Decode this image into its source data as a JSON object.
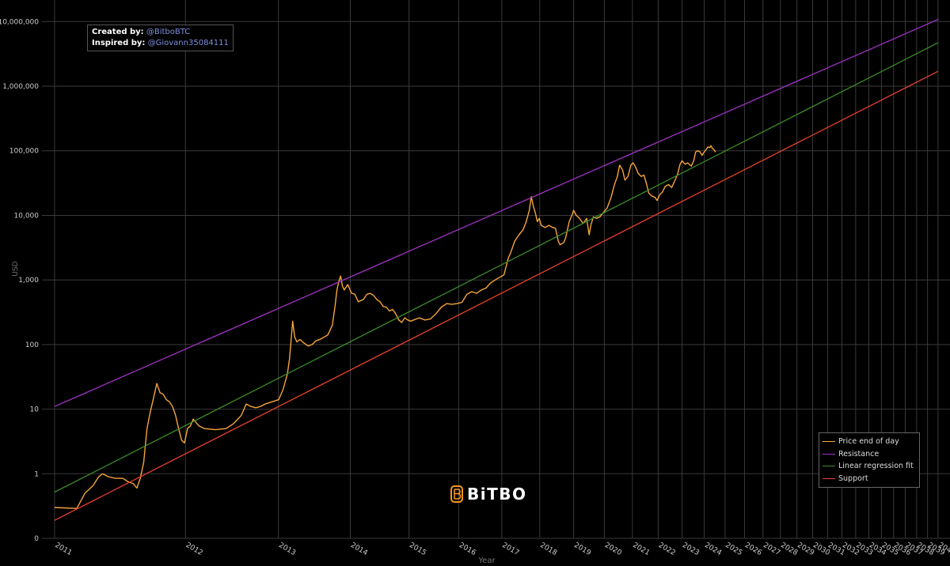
{
  "credits": {
    "created_label": "Created by:",
    "created_value": "@BitboBTC",
    "inspired_label": "Inspired by:",
    "inspired_value": "@Giovann35084111"
  },
  "logo": {
    "text": "BiTBO",
    "color": "#f7931a"
  },
  "chart_data": {
    "type": "line",
    "title": "",
    "xlabel": "Year",
    "ylabel": "USD",
    "y_scale": "log",
    "y_ticks": [
      0.1,
      1,
      10,
      100,
      1000,
      10000,
      100000,
      1000000,
      10000000
    ],
    "y_tick_labels": [
      "0",
      "1",
      "10",
      "100",
      "1,000",
      "10,000",
      "100,000",
      "1,000,000",
      "10,000,000"
    ],
    "x_axis_note": "x is days since Bitcoin genesis block; ticks placed at log scale of days",
    "x_ticks": [
      {
        "label": "2011",
        "x": 728
      },
      {
        "label": "2012",
        "x": 1093
      },
      {
        "label": "2013",
        "x": 1459
      },
      {
        "label": "2014",
        "x": 1824
      },
      {
        "label": "2015",
        "x": 2189
      },
      {
        "label": "2016",
        "x": 2554
      },
      {
        "label": "2017",
        "x": 2920
      },
      {
        "label": "2018",
        "x": 3285
      },
      {
        "label": "2019",
        "x": 3650
      },
      {
        "label": "2020",
        "x": 4015
      },
      {
        "label": "2021",
        "x": 4381
      },
      {
        "label": "2022",
        "x": 4746
      },
      {
        "label": "2023",
        "x": 5111
      },
      {
        "label": "2024",
        "x": 5476
      },
      {
        "label": "2025",
        "x": 5842
      },
      {
        "label": "2026",
        "x": 6207
      },
      {
        "label": "2027",
        "x": 6572
      },
      {
        "label": "2028",
        "x": 6937
      },
      {
        "label": "2029",
        "x": 7303
      },
      {
        "label": "2030",
        "x": 7668
      },
      {
        "label": "2031",
        "x": 8033
      },
      {
        "label": "2032",
        "x": 8398
      },
      {
        "label": "2033",
        "x": 8764
      },
      {
        "label": "2034",
        "x": 9129
      },
      {
        "label": "2035",
        "x": 9494
      },
      {
        "label": "2036",
        "x": 9859
      },
      {
        "label": "2037",
        "x": 10225
      },
      {
        "label": "2038",
        "x": 10590
      },
      {
        "label": "2039",
        "x": 10955
      },
      {
        "label": "2040",
        "x": 11320
      }
    ],
    "x_range": [
      700,
      11350
    ],
    "y_range": [
      0.1,
      13000000
    ],
    "grid": true,
    "legend_position": "bottom-right",
    "series": [
      {
        "name": "Price end of day",
        "color": "#f6a53b",
        "points": [
          [
            728,
            0.3
          ],
          [
            780,
            0.29
          ],
          [
            800,
            0.5
          ],
          [
            820,
            0.65
          ],
          [
            835,
            0.9
          ],
          [
            845,
            1.0
          ],
          [
            860,
            0.9
          ],
          [
            880,
            0.85
          ],
          [
            900,
            0.85
          ],
          [
            915,
            0.75
          ],
          [
            930,
            0.7
          ],
          [
            940,
            0.6
          ],
          [
            950,
            0.85
          ],
          [
            960,
            1.5
          ],
          [
            970,
            5
          ],
          [
            980,
            9
          ],
          [
            990,
            15
          ],
          [
            1000,
            25
          ],
          [
            1010,
            18
          ],
          [
            1020,
            17
          ],
          [
            1030,
            14
          ],
          [
            1040,
            13
          ],
          [
            1050,
            11
          ],
          [
            1060,
            8
          ],
          [
            1070,
            5
          ],
          [
            1080,
            3.3
          ],
          [
            1090,
            3
          ],
          [
            1100,
            5
          ],
          [
            1110,
            5.5
          ],
          [
            1120,
            7
          ],
          [
            1140,
            5.5
          ],
          [
            1160,
            5
          ],
          [
            1200,
            4.8
          ],
          [
            1240,
            5
          ],
          [
            1270,
            6
          ],
          [
            1300,
            8
          ],
          [
            1320,
            12
          ],
          [
            1340,
            11
          ],
          [
            1360,
            10.5
          ],
          [
            1380,
            11
          ],
          [
            1400,
            12
          ],
          [
            1430,
            13
          ],
          [
            1460,
            14
          ],
          [
            1480,
            20
          ],
          [
            1500,
            35
          ],
          [
            1510,
            60
          ],
          [
            1518,
            120
          ],
          [
            1525,
            230
          ],
          [
            1535,
            130
          ],
          [
            1545,
            110
          ],
          [
            1560,
            120
          ],
          [
            1580,
            105
          ],
          [
            1600,
            95
          ],
          [
            1620,
            100
          ],
          [
            1640,
            115
          ],
          [
            1660,
            120
          ],
          [
            1680,
            130
          ],
          [
            1700,
            140
          ],
          [
            1710,
            160
          ],
          [
            1725,
            200
          ],
          [
            1740,
            400
          ],
          [
            1750,
            700
          ],
          [
            1760,
            950
          ],
          [
            1770,
            1150
          ],
          [
            1780,
            800
          ],
          [
            1790,
            700
          ],
          [
            1810,
            850
          ],
          [
            1830,
            630
          ],
          [
            1850,
            600
          ],
          [
            1870,
            460
          ],
          [
            1900,
            500
          ],
          [
            1920,
            600
          ],
          [
            1940,
            620
          ],
          [
            1960,
            580
          ],
          [
            1980,
            500
          ],
          [
            2000,
            460
          ],
          [
            2020,
            390
          ],
          [
            2040,
            380
          ],
          [
            2060,
            330
          ],
          [
            2080,
            350
          ],
          [
            2100,
            300
          ],
          [
            2120,
            240
          ],
          [
            2140,
            220
          ],
          [
            2160,
            260
          ],
          [
            2180,
            240
          ],
          [
            2200,
            230
          ],
          [
            2220,
            240
          ],
          [
            2260,
            260
          ],
          [
            2300,
            240
          ],
          [
            2340,
            250
          ],
          [
            2380,
            300
          ],
          [
            2420,
            380
          ],
          [
            2460,
            430
          ],
          [
            2500,
            420
          ],
          [
            2540,
            430
          ],
          [
            2580,
            450
          ],
          [
            2620,
            600
          ],
          [
            2660,
            660
          ],
          [
            2700,
            620
          ],
          [
            2740,
            700
          ],
          [
            2780,
            750
          ],
          [
            2820,
            900
          ],
          [
            2860,
            1000
          ],
          [
            2900,
            1100
          ],
          [
            2940,
            1200
          ],
          [
            2980,
            2200
          ],
          [
            3000,
            2600
          ],
          [
            3040,
            4000
          ],
          [
            3080,
            5000
          ],
          [
            3120,
            6000
          ],
          [
            3150,
            8000
          ],
          [
            3180,
            12000
          ],
          [
            3200,
            19500
          ],
          [
            3220,
            14000
          ],
          [
            3240,
            11000
          ],
          [
            3260,
            8000
          ],
          [
            3280,
            9000
          ],
          [
            3300,
            7000
          ],
          [
            3340,
            6500
          ],
          [
            3380,
            7000
          ],
          [
            3420,
            6500
          ],
          [
            3450,
            6300
          ],
          [
            3480,
            4000
          ],
          [
            3500,
            3500
          ],
          [
            3540,
            3800
          ],
          [
            3560,
            4500
          ],
          [
            3600,
            8000
          ],
          [
            3630,
            10000
          ],
          [
            3650,
            12000
          ],
          [
            3680,
            10000
          ],
          [
            3700,
            9500
          ],
          [
            3730,
            8500
          ],
          [
            3760,
            7500
          ],
          [
            3800,
            9000
          ],
          [
            3830,
            5000
          ],
          [
            3850,
            7000
          ],
          [
            3880,
            9500
          ],
          [
            3920,
            9000
          ],
          [
            3960,
            9500
          ],
          [
            4000,
            11000
          ],
          [
            4050,
            13000
          ],
          [
            4100,
            19000
          ],
          [
            4140,
            29000
          ],
          [
            4180,
            40000
          ],
          [
            4210,
            60000
          ],
          [
            4250,
            50000
          ],
          [
            4280,
            35000
          ],
          [
            4320,
            40000
          ],
          [
            4360,
            60000
          ],
          [
            4390,
            65000
          ],
          [
            4420,
            57000
          ],
          [
            4460,
            45000
          ],
          [
            4500,
            40000
          ],
          [
            4540,
            42000
          ],
          [
            4580,
            30000
          ],
          [
            4610,
            22000
          ],
          [
            4650,
            20000
          ],
          [
            4700,
            19000
          ],
          [
            4730,
            17000
          ],
          [
            4770,
            21000
          ],
          [
            4810,
            23000
          ],
          [
            4850,
            28000
          ],
          [
            4900,
            30000
          ],
          [
            4950,
            27000
          ],
          [
            5000,
            35000
          ],
          [
            5040,
            43000
          ],
          [
            5080,
            62000
          ],
          [
            5110,
            70000
          ],
          [
            5160,
            62000
          ],
          [
            5200,
            65000
          ],
          [
            5260,
            58000
          ],
          [
            5300,
            70000
          ],
          [
            5330,
            95000
          ],
          [
            5360,
            100000
          ],
          [
            5400,
            97000
          ],
          [
            5440,
            85000
          ],
          [
            5470,
            94000
          ],
          [
            5510,
            105000
          ],
          [
            5540,
            115000
          ],
          [
            5570,
            112000
          ],
          [
            5590,
            120000
          ],
          [
            5620,
            108000
          ],
          [
            5650,
            103000
          ],
          [
            5670,
            95000
          ]
        ]
      },
      {
        "name": "Resistance",
        "color": "#a232c7",
        "fn": "power_law",
        "at_x_start": 11,
        "at_x_end": 10800000
      },
      {
        "name": "Linear regression fit",
        "color": "#3b8e28",
        "fn": "power_law",
        "at_x_start": 0.52,
        "at_x_end": 4700000
      },
      {
        "name": "Support",
        "color": "#e8412c",
        "fn": "power_law",
        "at_x_start": 0.19,
        "at_x_end": 1700000
      }
    ]
  }
}
